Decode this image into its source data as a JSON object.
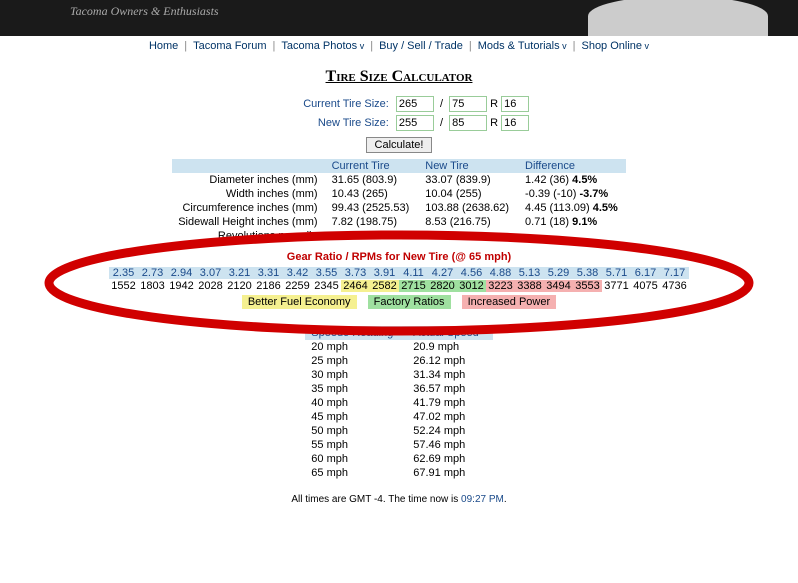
{
  "header_tagline": "Tacoma Owners & Enthusiasts",
  "nav": [
    "Home",
    "Tacoma Forum",
    "Tacoma Photos",
    "Buy / Sell / Trade",
    "Mods & Tutorials",
    "Shop Online"
  ],
  "nav_caret": [
    false,
    false,
    true,
    false,
    true,
    true
  ],
  "title": "Tire Size Calculator",
  "labels": {
    "current": "Current Tire Size:",
    "new": "New Tire Size:",
    "R": "R"
  },
  "inputs": {
    "cur_w": "265",
    "cur_a": "75",
    "cur_r": "16",
    "new_w": "255",
    "new_a": "85",
    "new_r": "16"
  },
  "calc_btn": "Calculate!",
  "result_headers": [
    "Current Tire",
    "New Tire",
    "Difference"
  ],
  "result_rows": [
    {
      "l": "Diameter inches (mm)",
      "c": "31.65 (803.9)",
      "n": "33.07 (839.9)",
      "d": "1.42 (36) 4.5%"
    },
    {
      "l": "Width inches (mm)",
      "c": "10.43 (265)",
      "n": "10.04 (255)",
      "d": "-0.39 (-10) -3.7%"
    },
    {
      "l": "Circumference inches (mm)",
      "c": "99.43 (2525.53)",
      "n": "103.88 (2638.62)",
      "d": "4.45 (113.09) 4.5%"
    },
    {
      "l": "Sidewall Height inches (mm)",
      "c": "7.82 (198.75)",
      "n": "8.53 (216.75)",
      "d": "0.71 (18) 9.1%"
    },
    {
      "l": "Revolutions per mile",
      "c": "",
      "n": "",
      "d": ""
    }
  ],
  "gear_title": "Gear Ratio / RPMs for New Tire (@ 65 mph)",
  "gear_ratios": [
    "2.35",
    "2.73",
    "2.94",
    "3.07",
    "3.21",
    "3.31",
    "3.42",
    "3.55",
    "3.73",
    "3.91",
    "4.11",
    "4.27",
    "4.56",
    "4.88",
    "5.13",
    "5.29",
    "5.38",
    "5.71",
    "6.17",
    "7.17"
  ],
  "gear_rpms": [
    "1552",
    "1803",
    "1942",
    "2028",
    "2120",
    "2186",
    "2259",
    "2345",
    "2464",
    "2582",
    "2715",
    "2820",
    "3012",
    "3223",
    "3388",
    "3494",
    "3553",
    "3771",
    "4075",
    "4736"
  ],
  "gear_classes": [
    "",
    "",
    "",
    "",
    "",
    "",
    "",
    "",
    "y",
    "y",
    "g",
    "g",
    "g",
    "p",
    "p",
    "p",
    "p",
    "",
    "",
    ""
  ],
  "legend": {
    "y": "Better Fuel Economy",
    "g": "Factory Ratios",
    "p": "Increased Power"
  },
  "speedo_headers": [
    "Speedo Reading",
    "Actual Speed"
  ],
  "speedo_unit": "mph",
  "speedo": [
    [
      "20",
      "20.9"
    ],
    [
      "25",
      "26.12"
    ],
    [
      "30",
      "31.34"
    ],
    [
      "35",
      "36.57"
    ],
    [
      "40",
      "41.79"
    ],
    [
      "45",
      "47.02"
    ],
    [
      "50",
      "52.24"
    ],
    [
      "55",
      "57.46"
    ],
    [
      "60",
      "62.69"
    ],
    [
      "65",
      "67.91"
    ]
  ],
  "footer_pre": "All times are GMT -4. The time now is ",
  "footer_time": "09:27 PM",
  "footer_post": "."
}
